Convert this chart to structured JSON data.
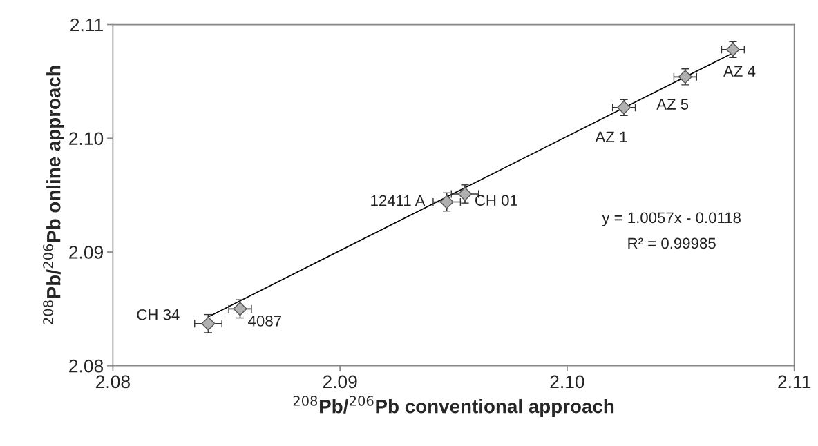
{
  "chart_data": {
    "type": "scatter",
    "xlabel": "$^{208}$Pb/$^{206}$Pb conventional approach",
    "ylabel": "$^{208}$Pb/$^{206}$Pb online approach",
    "xlim": [
      2.08,
      2.11
    ],
    "ylim": [
      2.08,
      2.11
    ],
    "xticks": [
      2.08,
      2.09,
      {
        "value": 2.1,
        "label": "2.10"
      },
      2.11
    ],
    "yticks": [
      2.08,
      2.09,
      {
        "value": 2.1,
        "label": "2.10"
      },
      2.11
    ],
    "grid": false,
    "legend": false,
    "series": [
      {
        "marker": "diamond",
        "color": "#b0b0b0",
        "x": [
          2.0842,
          2.0856,
          2.0947,
          2.0955,
          2.1025,
          2.1052,
          2.1073
        ],
        "values": [
          2.0837,
          2.085,
          2.0944,
          2.0951,
          2.1027,
          2.1054,
          2.1078
        ],
        "xerrors": [
          0.0006,
          0.0005,
          0.0006,
          0.0006,
          0.0005,
          0.0005,
          0.0005
        ],
        "errors": [
          0.0008,
          0.0008,
          0.0008,
          0.0008,
          0.0007,
          0.0007,
          0.0007
        ]
      },
      {
        "type": "line",
        "color": "#000000",
        "x": [
          2.0842,
          2.1073
        ],
        "values": [
          2.0843,
          2.1075
        ]
      }
    ],
    "annotations": [
      {
        "text": "CH 34",
        "x": 2.0842,
        "y": 2.0837
      },
      {
        "text": "4087",
        "x": 2.0856,
        "y": 2.085
      },
      {
        "text": "12411 A",
        "x": 2.0947,
        "y": 2.0944
      },
      {
        "text": "CH 01",
        "x": 2.0955,
        "y": 2.0951
      },
      {
        "text": "AZ 1",
        "x": 2.1025,
        "y": 2.1027
      },
      {
        "text": "AZ 5",
        "x": 2.1052,
        "y": 2.1054
      },
      {
        "text": "AZ 4",
        "x": 2.1073,
        "y": 2.1078
      },
      "y = 1.0057x - 0.0118",
      "R² = 0.99985"
    ]
  }
}
